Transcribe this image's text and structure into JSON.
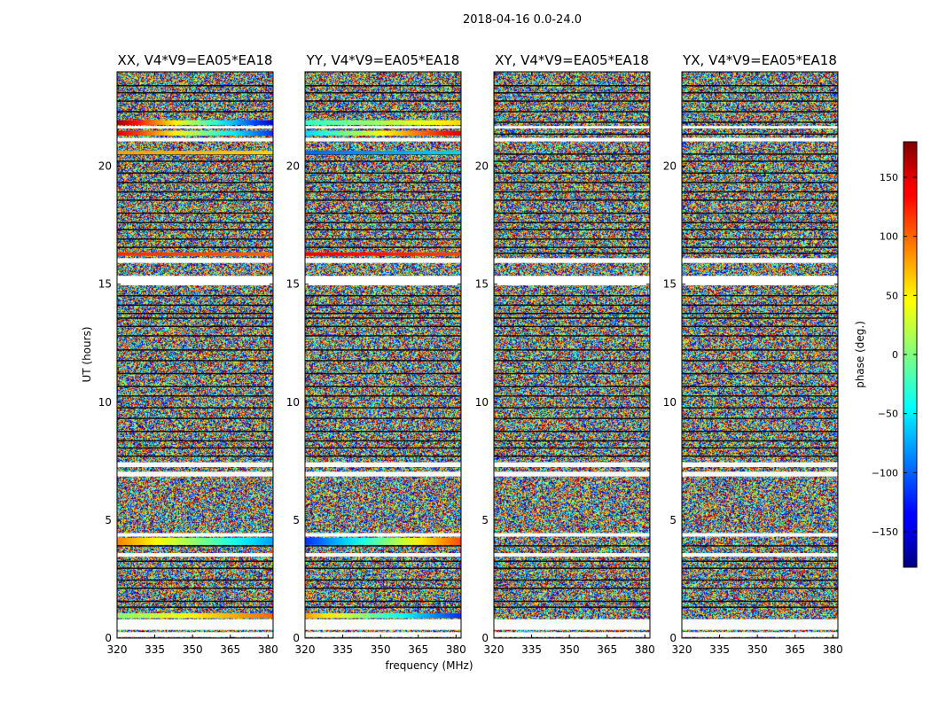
{
  "chart_data": {
    "type": "heatmap",
    "title": "2018-04-16 0.0-24.0",
    "xlabel": "frequency (MHz)",
    "ylabel": "UT (hours)",
    "xlim": [
      320,
      382
    ],
    "ylim": [
      0,
      24
    ],
    "x_ticks": [
      320,
      335,
      350,
      365,
      380
    ],
    "y_ticks": [
      0,
      5,
      10,
      15,
      20
    ],
    "panels": [
      {
        "name": "xx",
        "title": "XX, V4*V9=EA05*EA18"
      },
      {
        "name": "yy",
        "title": "YY, V4*V9=EA05*EA18"
      },
      {
        "name": "xy",
        "title": "XY, V4*V9=EA05*EA18"
      },
      {
        "name": "yx",
        "title": "YX, V4*V9=EA05*EA18"
      }
    ],
    "colorbar": {
      "label": "phase (deg.)",
      "range": [
        -180,
        180
      ],
      "ticks": [
        150,
        100,
        50,
        0,
        -50,
        -100,
        -150
      ],
      "colormap": "jet"
    },
    "blank_ut_ranges": [
      [
        0.05,
        0.25
      ],
      [
        0.35,
        0.8
      ],
      [
        3.45,
        3.6
      ],
      [
        4.3,
        4.45
      ],
      [
        6.85,
        7.05
      ],
      [
        7.25,
        7.45
      ],
      [
        14.95,
        15.35
      ],
      [
        15.9,
        16.1
      ],
      [
        21.05,
        21.2
      ],
      [
        21.6,
        21.7
      ]
    ],
    "line_ut_levels": [
      1.3,
      1.55,
      2.1,
      2.45,
      2.95,
      3.25,
      3.9,
      7.7,
      8.05,
      8.35,
      8.75,
      9.3,
      9.75,
      10.25,
      10.65,
      11.2,
      11.75,
      12.2,
      12.8,
      13.2,
      13.55,
      13.75,
      14.1,
      14.5,
      16.3,
      16.55,
      16.9,
      17.3,
      17.6,
      18.0,
      18.55,
      18.9,
      19.3,
      19.7,
      20.2,
      20.5,
      21.35,
      21.85,
      22.3,
      22.75,
      23.1,
      23.4
    ],
    "coherent_bands": [
      {
        "panel": "xx",
        "ut": [
          0.85,
          1.05
        ],
        "phase_start": 0,
        "phase_end": 100
      },
      {
        "panel": "xx",
        "ut": [
          3.95,
          4.25
        ],
        "phase_start": 90,
        "phase_end": -80
      },
      {
        "panel": "xx",
        "ut": [
          16.2,
          16.35
        ],
        "phase_start": 120,
        "phase_end": 100
      },
      {
        "panel": "xx",
        "ut": [
          20.5,
          20.65
        ],
        "phase_start": 80,
        "phase_end": 60
      },
      {
        "panel": "xx",
        "ut": [
          21.3,
          21.5
        ],
        "phase_start": 150,
        "phase_end": -120
      },
      {
        "panel": "xx",
        "ut": [
          21.75,
          21.95
        ],
        "phase_start": 170,
        "phase_end": -150
      },
      {
        "panel": "yy",
        "ut": [
          0.85,
          1.05
        ],
        "phase_start": 80,
        "phase_end": -120
      },
      {
        "panel": "yy",
        "ut": [
          3.95,
          4.25
        ],
        "phase_start": -120,
        "phase_end": 110
      },
      {
        "panel": "yy",
        "ut": [
          16.2,
          16.35
        ],
        "phase_start": 140,
        "phase_end": 110
      },
      {
        "panel": "yy",
        "ut": [
          20.5,
          20.65
        ],
        "phase_start": -100,
        "phase_end": -60
      },
      {
        "panel": "yy",
        "ut": [
          21.3,
          21.5
        ],
        "phase_start": -60,
        "phase_end": 150
      },
      {
        "panel": "yy",
        "ut": [
          21.75,
          21.95
        ],
        "phase_start": -30,
        "phase_end": 60
      }
    ]
  }
}
